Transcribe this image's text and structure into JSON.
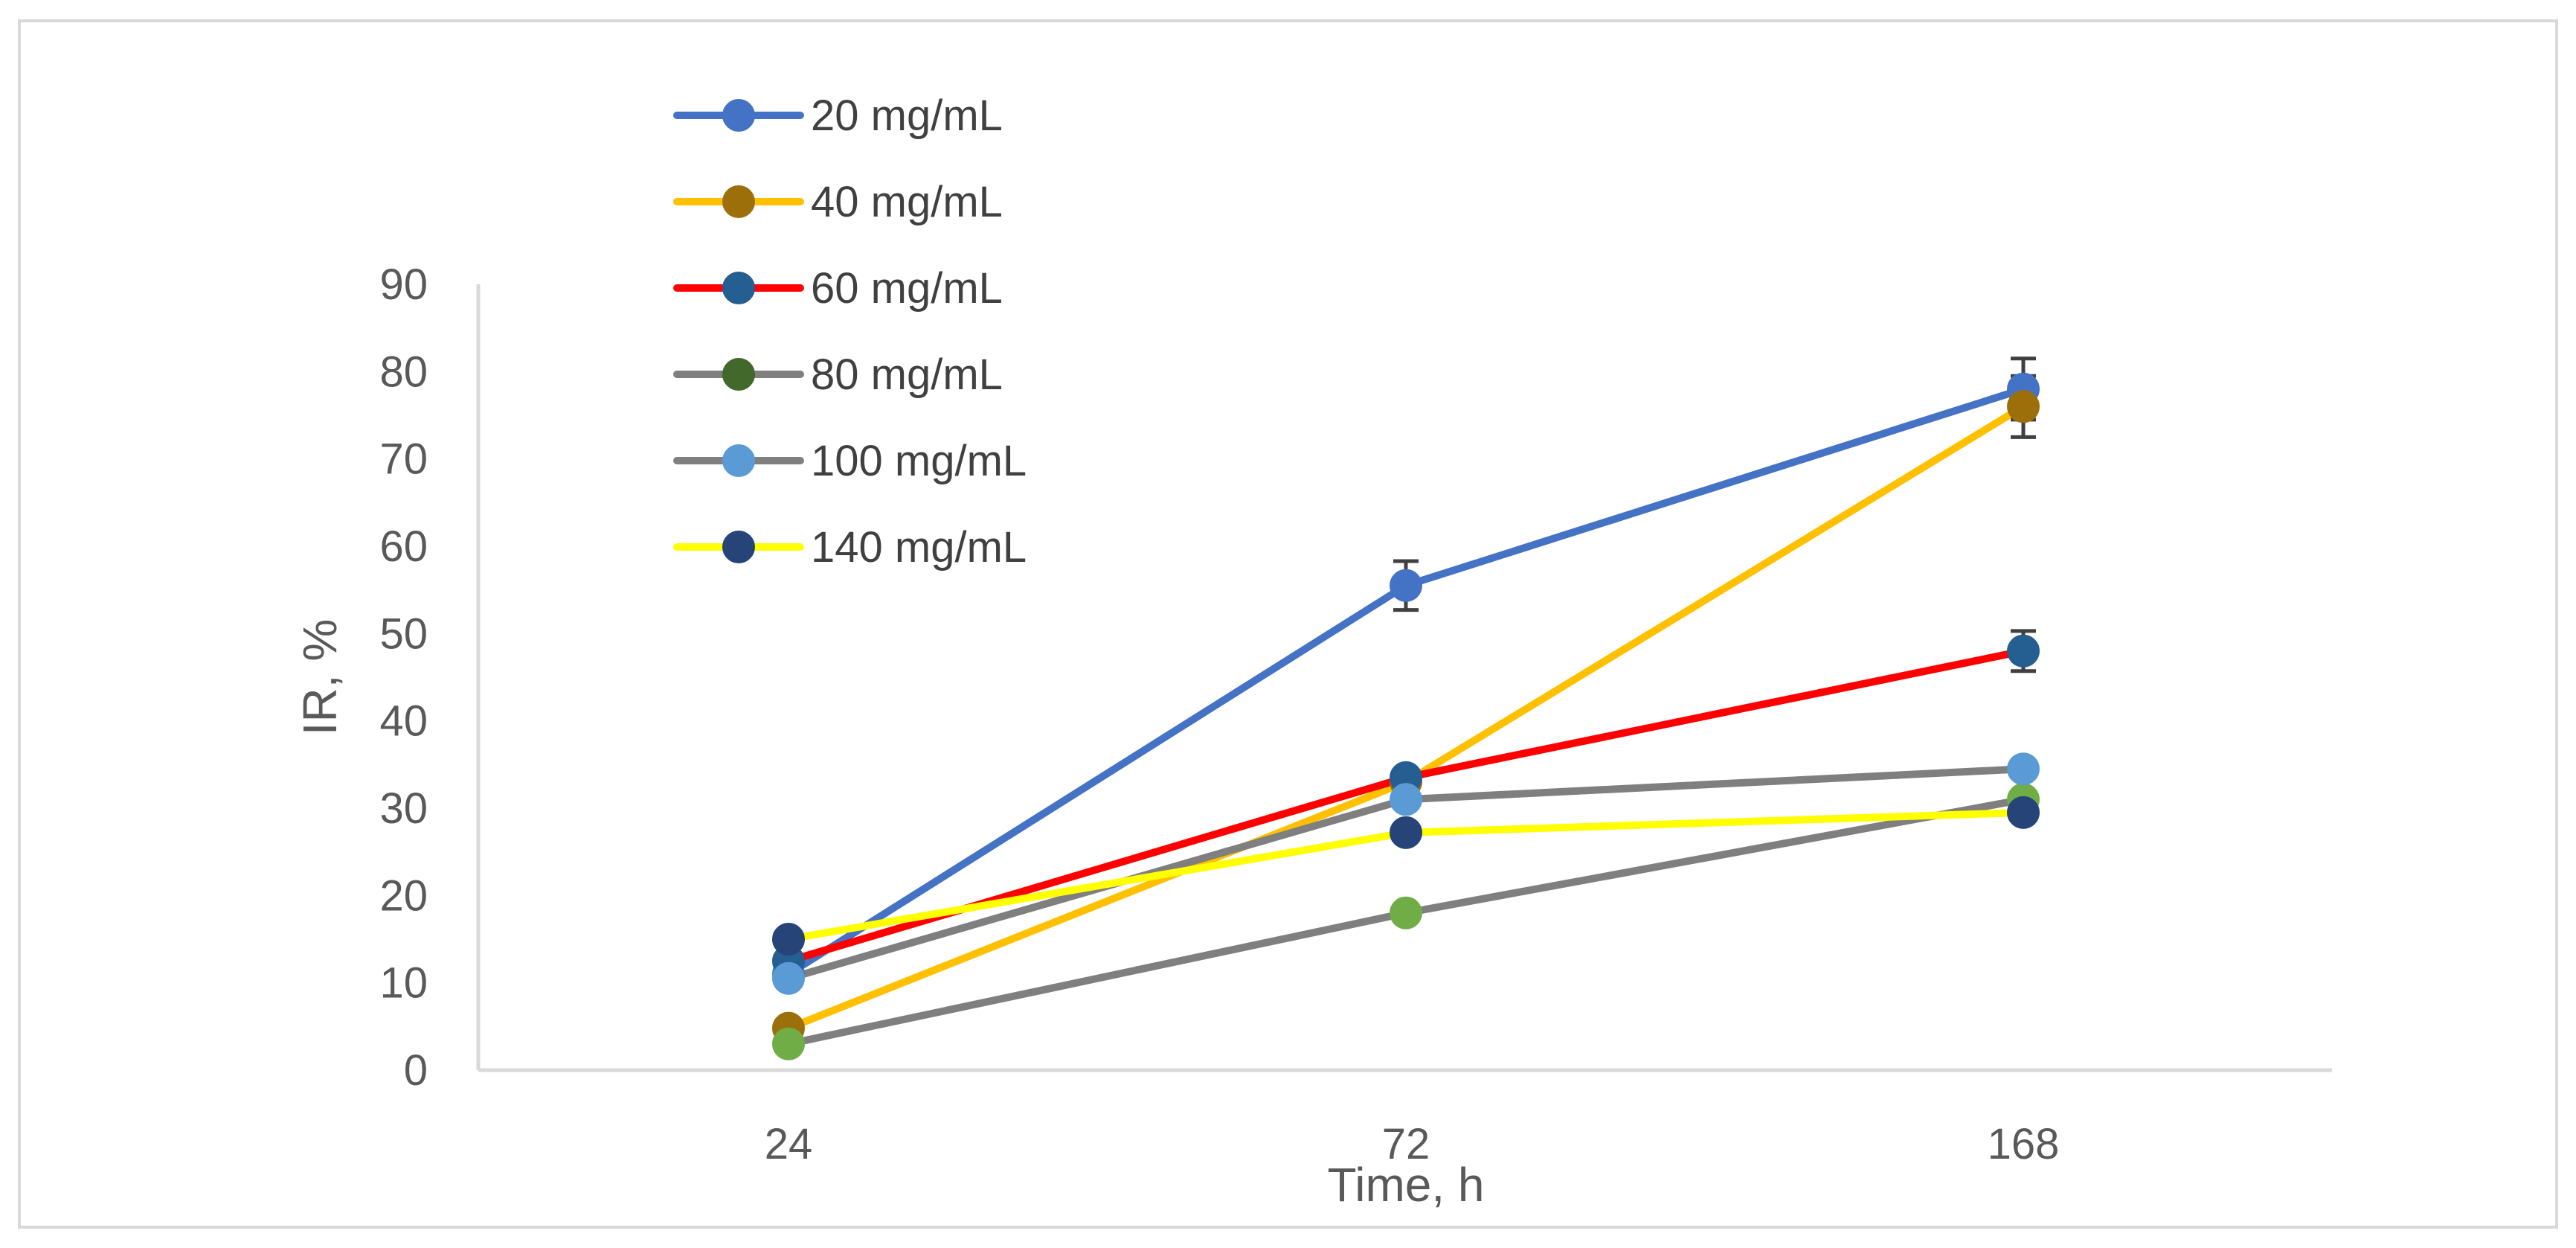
{
  "chart_data": {
    "type": "line",
    "title": "",
    "xlabel": "Time, h",
    "ylabel": "IR, %",
    "categories": [
      "24",
      "72",
      "168"
    ],
    "ylim": [
      0,
      90
    ],
    "yticks": [
      0,
      10,
      20,
      30,
      40,
      50,
      60,
      70,
      80,
      90
    ],
    "grid": false,
    "legend_position": "top-left",
    "series": [
      {
        "name": "20 mg/mL",
        "line_color": "#4472c4",
        "marker_color": "#4472c4",
        "values": [
          11,
          55.5,
          78
        ],
        "errors": [
          0,
          2.8,
          3.5
        ]
      },
      {
        "name": "40 mg/mL",
        "line_color": "#ffc000",
        "marker_color": "#9c6f0a",
        "values": [
          4.8,
          33,
          76
        ],
        "errors": [
          0,
          0,
          3.5
        ]
      },
      {
        "name": "60 mg/mL",
        "line_color": "#ff0000",
        "marker_color": "#255e91",
        "values": [
          12.5,
          33.5,
          48
        ],
        "errors": [
          0,
          0,
          2.3
        ]
      },
      {
        "name": "80 mg/mL",
        "line_color": "#7f7f7f",
        "marker_color": "#70ad47",
        "legend_marker_color": "#43682b",
        "values": [
          3,
          18,
          31
        ],
        "errors": [
          0,
          0,
          0
        ]
      },
      {
        "name": "100 mg/mL",
        "line_color": "#7f7f7f",
        "marker_color": "#5b9bd5",
        "values": [
          10.5,
          31,
          34.5
        ],
        "errors": [
          0,
          0,
          0
        ]
      },
      {
        "name": "140 mg/mL",
        "line_color": "#ffff00",
        "marker_color": "#264478",
        "values": [
          15,
          27.2,
          29.5
        ],
        "errors": [
          0,
          0,
          0
        ]
      }
    ]
  }
}
